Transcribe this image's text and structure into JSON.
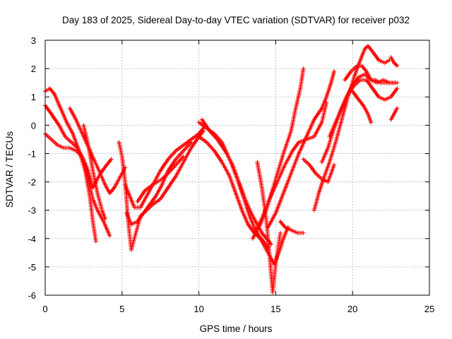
{
  "chart_data": {
    "type": "scatter",
    "title": "Day 183 of 2025, Sidereal Day-to-day VTEC variation (SDTVAR) for receiver p032",
    "xlabel": "GPS time / hours",
    "ylabel": "SDTVAR / TECUs",
    "xlim": [
      0,
      25
    ],
    "ylim": [
      -6,
      3
    ],
    "x_ticks": [
      "0",
      "5",
      "10",
      "15",
      "20",
      "25"
    ],
    "y_ticks": [
      "-6",
      "-5",
      "-4",
      "-3",
      "-2",
      "-1",
      "0",
      "1",
      "2",
      "3"
    ],
    "grid": true,
    "legend": "none",
    "marker": "plus",
    "color": "#ff0000",
    "series": [
      {
        "x": [
          0.0,
          0.3,
          0.6,
          1.0,
          1.4,
          1.8,
          2.2,
          2.6,
          2.9,
          3.1,
          3.3
        ],
        "y": [
          1.2,
          1.3,
          1.1,
          0.6,
          0.1,
          -0.3,
          -0.9,
          -1.6,
          -2.5,
          -3.4,
          -4.1
        ]
      },
      {
        "x": [
          0.0,
          0.4,
          0.9,
          1.3,
          1.7,
          2.1,
          2.5,
          2.8,
          3.1,
          3.4,
          3.8,
          4.2
        ],
        "y": [
          0.7,
          0.4,
          0.0,
          -0.4,
          -0.6,
          -0.8,
          -1.2,
          -1.9,
          -2.6,
          -3.0,
          -3.4,
          -3.9
        ]
      },
      {
        "x": [
          0.0,
          0.4,
          0.8,
          1.2,
          1.6,
          2.0,
          2.4,
          2.8,
          3.1,
          3.3,
          3.6,
          4.0,
          4.3
        ],
        "y": [
          -0.3,
          -0.5,
          -0.7,
          -0.8,
          -0.8,
          -0.9,
          -1.1,
          -1.6,
          -2.2,
          -2.0,
          -1.7,
          -1.4,
          -1.2
        ]
      },
      {
        "x": [
          1.6,
          2.0,
          2.5,
          3.0,
          3.5,
          3.9,
          4.2,
          4.5,
          4.8,
          5.2
        ],
        "y": [
          0.6,
          0.2,
          -0.4,
          -1.0,
          -1.6,
          -2.1,
          -2.4,
          -2.2,
          -1.9,
          -1.5
        ]
      },
      {
        "x": [
          2.5,
          2.8,
          3.1,
          3.4,
          3.7,
          3.9
        ],
        "y": [
          0.0,
          -0.7,
          -1.6,
          -2.4,
          -3.0,
          -3.3
        ]
      },
      {
        "x": [
          4.8,
          5.0,
          5.2,
          5.4,
          5.6,
          5.9,
          6.2,
          6.6,
          7.0,
          7.5,
          8.0,
          8.5,
          9.0,
          9.5,
          10.0,
          10.3
        ],
        "y": [
          -0.6,
          -1.1,
          -2.0,
          -3.4,
          -4.4,
          -3.8,
          -3.2,
          -3.0,
          -2.8,
          -2.6,
          -2.2,
          -1.8,
          -1.3,
          -0.8,
          -0.4,
          -0.2
        ]
      },
      {
        "x": [
          5.2,
          5.5,
          5.8,
          6.2,
          6.6,
          7.0,
          7.5,
          8.0,
          8.5,
          9.0,
          9.5,
          10.0,
          10.3
        ],
        "y": [
          -2.1,
          -2.5,
          -2.9,
          -2.9,
          -2.5,
          -2.1,
          -1.6,
          -1.2,
          -0.9,
          -0.7,
          -0.5,
          -0.3,
          -0.1
        ]
      },
      {
        "x": [
          5.3,
          5.6,
          6.0,
          6.4,
          6.8,
          7.2,
          7.6,
          8.0,
          8.5,
          9.0,
          9.5
        ],
        "y": [
          -3.1,
          -3.5,
          -3.4,
          -3.1,
          -2.8,
          -2.5,
          -2.1,
          -1.6,
          -1.2,
          -0.9,
          -0.6
        ]
      },
      {
        "x": [
          6.0,
          6.5,
          7.0,
          7.3,
          7.6,
          8.0,
          8.5,
          9.0
        ],
        "y": [
          -2.7,
          -2.3,
          -2.1,
          -2.0,
          -1.9,
          -1.7,
          -1.4,
          -1.1
        ]
      },
      {
        "x": [
          10.0,
          10.5,
          11.0,
          11.5,
          12.0,
          12.5,
          13.0,
          13.3,
          13.6,
          13.9,
          14.2,
          14.5
        ],
        "y": [
          0.1,
          -0.1,
          -0.3,
          -0.6,
          -1.2,
          -1.9,
          -2.7,
          -3.2,
          -3.6,
          -3.9,
          -4.1,
          -4.3
        ]
      },
      {
        "x": [
          10.0,
          10.5,
          11.0,
          11.5,
          12.0,
          12.4,
          12.8,
          13.2,
          13.6,
          14.0,
          14.3,
          14.6,
          14.9,
          15.2,
          15.5,
          15.8
        ],
        "y": [
          -0.4,
          -0.6,
          -0.9,
          -1.3,
          -1.8,
          -2.4,
          -3.0,
          -3.5,
          -3.8,
          -4.0,
          -4.3,
          -4.6,
          -4.9,
          -4.5,
          -4.0,
          -3.6
        ]
      },
      {
        "x": [
          10.2,
          10.7,
          11.2,
          11.7,
          12.2,
          12.6,
          13.0,
          13.4,
          13.8,
          14.1,
          14.4,
          14.7
        ],
        "y": [
          0.2,
          -0.2,
          -0.5,
          -0.9,
          -1.4,
          -2.0,
          -2.6,
          -3.1,
          -3.5,
          -3.8,
          -4.0,
          -4.2
        ]
      },
      {
        "x": [
          13.8,
          14.1,
          14.4,
          14.6,
          14.8,
          15.0,
          15.3
        ],
        "y": [
          -1.3,
          -2.2,
          -3.4,
          -4.6,
          -5.9,
          -4.9,
          -3.8
        ]
      },
      {
        "x": [
          13.5,
          14.0,
          14.5,
          15.0,
          15.5,
          16.0,
          16.3,
          16.6,
          16.8
        ],
        "y": [
          -4.0,
          -3.5,
          -2.8,
          -1.9,
          -1.0,
          -0.2,
          0.6,
          1.3,
          2.0
        ]
      },
      {
        "x": [
          13.6,
          14.1,
          14.6,
          15.1,
          15.6,
          16.1,
          16.5,
          17.0,
          17.5,
          18.0,
          18.3
        ],
        "y": [
          -3.8,
          -3.3,
          -2.6,
          -2.0,
          -1.4,
          -0.9,
          -0.6,
          -0.5,
          -0.4,
          0.1,
          0.8
        ]
      },
      {
        "x": [
          14.5,
          15.0,
          15.5,
          16.0,
          16.5,
          17.0,
          17.5,
          18.0,
          18.3,
          18.6,
          18.8
        ],
        "y": [
          -3.6,
          -3.1,
          -2.4,
          -1.7,
          -1.0,
          -0.4,
          0.2,
          0.6,
          1.0,
          1.5,
          1.9
        ]
      },
      {
        "x": [
          15.3,
          15.6,
          16.0,
          16.4,
          16.8
        ],
        "y": [
          -3.4,
          -3.6,
          -3.7,
          -3.8,
          -3.8
        ]
      },
      {
        "x": [
          16.8,
          17.2,
          17.6,
          18.0,
          18.4,
          18.8
        ],
        "y": [
          -1.2,
          -1.4,
          -1.7,
          -1.9,
          -2.0,
          -1.4
        ]
      },
      {
        "x": [
          17.5,
          17.8,
          18.1,
          18.5,
          18.9,
          19.3,
          19.7,
          20.1,
          20.5,
          20.8,
          21.0,
          21.3,
          21.7,
          22.1,
          22.4
        ],
        "y": [
          -3.0,
          -2.4,
          -1.9,
          -1.3,
          -0.6,
          0.2,
          1.0,
          1.7,
          2.3,
          2.7,
          2.8,
          2.6,
          2.3,
          2.2,
          2.3
        ]
      },
      {
        "x": [
          18.0,
          18.4,
          18.8,
          19.2,
          19.6,
          20.0,
          20.4,
          20.8,
          21.2,
          21.6,
          22.0,
          22.4,
          22.8
        ],
        "y": [
          -1.3,
          -0.8,
          -0.1,
          0.5,
          1.0,
          1.4,
          1.7,
          1.8,
          1.6,
          1.5,
          1.6,
          1.5,
          1.5
        ]
      },
      {
        "x": [
          18.5,
          18.9,
          19.3,
          19.7,
          20.1,
          20.5,
          20.9,
          21.3,
          21.7,
          22.1,
          22.5,
          22.9
        ],
        "y": [
          -0.4,
          0.1,
          0.6,
          1.1,
          1.4,
          1.6,
          1.6,
          1.3,
          1.0,
          0.9,
          1.0,
          1.3
        ]
      },
      {
        "x": [
          19.5,
          19.9,
          20.3,
          20.6,
          20.9,
          21.2,
          21.5,
          21.8,
          22.1,
          22.5,
          22.9
        ],
        "y": [
          1.6,
          1.9,
          2.1,
          2.1,
          1.9,
          1.6,
          1.6,
          1.5,
          1.5,
          1.5,
          1.5
        ]
      },
      {
        "x": [
          20.0,
          20.4,
          20.7,
          21.0,
          21.2
        ],
        "y": [
          1.2,
          0.9,
          0.7,
          0.4,
          0.1
        ]
      },
      {
        "x": [
          22.5,
          22.7,
          22.9
        ],
        "y": [
          2.4,
          2.2,
          2.1
        ]
      },
      {
        "x": [
          22.5,
          22.7,
          22.9
        ],
        "y": [
          0.2,
          0.4,
          0.6
        ]
      }
    ]
  }
}
